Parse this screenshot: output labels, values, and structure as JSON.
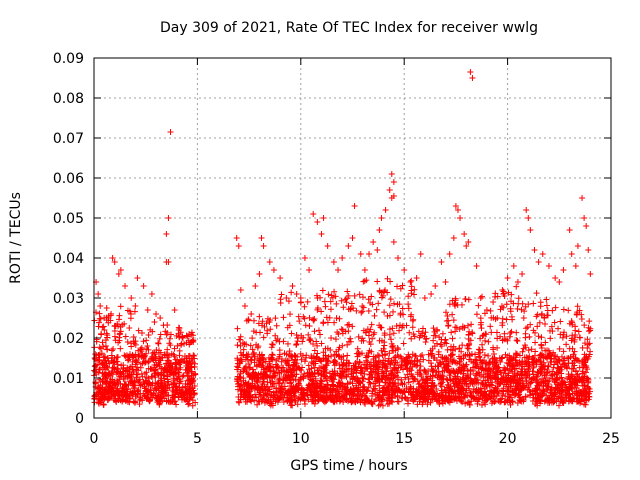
{
  "chart_data": {
    "type": "scatter",
    "title": "Day 309 of 2021, Rate Of TEC Index for receiver wwlg",
    "xlabel": "GPS time / hours",
    "ylabel": "ROTI / TECUs",
    "xlim": [
      0,
      25
    ],
    "ylim": [
      0,
      0.09
    ],
    "x_ticks": [
      "0",
      "5",
      "10",
      "15",
      "20",
      "25"
    ],
    "y_ticks": [
      "0",
      "0.01",
      "0.02",
      "0.03",
      "0.04",
      "0.05",
      "0.06",
      "0.07",
      "0.08",
      "0.09"
    ],
    "grid": true,
    "marker": "+",
    "color": "#ff0000",
    "gap_hours": [
      4.9,
      6.9
    ],
    "series": [
      {
        "points": [
          [
            0.1,
            0.034
          ],
          [
            0.2,
            0.031
          ],
          [
            0.3,
            0.028
          ],
          [
            0.5,
            0.022
          ],
          [
            0.7,
            0.025
          ],
          [
            0.9,
            0.04
          ],
          [
            1.0,
            0.039
          ],
          [
            1.2,
            0.036
          ],
          [
            1.3,
            0.037
          ],
          [
            1.5,
            0.033
          ],
          [
            1.8,
            0.03
          ],
          [
            2.0,
            0.028
          ],
          [
            2.1,
            0.035
          ],
          [
            2.4,
            0.033
          ],
          [
            2.6,
            0.027
          ],
          [
            2.8,
            0.031
          ],
          [
            3.0,
            0.026
          ],
          [
            3.2,
            0.025
          ],
          [
            3.5,
            0.039
          ],
          [
            3.6,
            0.039
          ],
          [
            3.5,
            0.046
          ],
          [
            3.6,
            0.05
          ],
          [
            3.7,
            0.0715
          ],
          [
            3.9,
            0.027
          ],
          [
            4.1,
            0.022
          ],
          [
            4.3,
            0.02
          ],
          [
            4.6,
            0.021
          ],
          [
            4.8,
            0.019
          ],
          [
            6.9,
            0.045
          ],
          [
            7.0,
            0.043
          ],
          [
            7.1,
            0.032
          ],
          [
            7.3,
            0.028
          ],
          [
            7.6,
            0.026
          ],
          [
            7.8,
            0.033
          ],
          [
            8.0,
            0.036
          ],
          [
            8.1,
            0.045
          ],
          [
            8.2,
            0.043
          ],
          [
            8.5,
            0.039
          ],
          [
            8.7,
            0.037
          ],
          [
            9.0,
            0.035
          ],
          [
            9.3,
            0.03
          ],
          [
            9.6,
            0.033
          ],
          [
            9.8,
            0.031
          ],
          [
            10.0,
            0.03
          ],
          [
            10.2,
            0.04
          ],
          [
            10.4,
            0.037
          ],
          [
            10.6,
            0.051
          ],
          [
            10.8,
            0.049
          ],
          [
            11.0,
            0.046
          ],
          [
            11.1,
            0.05
          ],
          [
            11.3,
            0.043
          ],
          [
            11.6,
            0.039
          ],
          [
            11.8,
            0.037
          ],
          [
            12.0,
            0.04
          ],
          [
            12.3,
            0.043
          ],
          [
            12.5,
            0.045
          ],
          [
            12.6,
            0.053
          ],
          [
            12.9,
            0.041
          ],
          [
            13.1,
            0.037
          ],
          [
            13.3,
            0.041
          ],
          [
            13.5,
            0.044
          ],
          [
            13.7,
            0.042
          ],
          [
            13.8,
            0.047
          ],
          [
            13.9,
            0.05
          ],
          [
            14.1,
            0.052
          ],
          [
            14.3,
            0.057
          ],
          [
            14.4,
            0.061
          ],
          [
            14.5,
            0.059
          ],
          [
            14.5,
            0.0555
          ],
          [
            14.4,
            0.055
          ],
          [
            14.5,
            0.044
          ],
          [
            14.7,
            0.04
          ],
          [
            15.0,
            0.037
          ],
          [
            15.3,
            0.034
          ],
          [
            15.6,
            0.035
          ],
          [
            15.8,
            0.041
          ],
          [
            16.0,
            0.03
          ],
          [
            16.3,
            0.031
          ],
          [
            16.5,
            0.033
          ],
          [
            16.8,
            0.039
          ],
          [
            17.0,
            0.034
          ],
          [
            17.2,
            0.041
          ],
          [
            17.4,
            0.045
          ],
          [
            17.5,
            0.053
          ],
          [
            17.6,
            0.052
          ],
          [
            17.7,
            0.05
          ],
          [
            17.9,
            0.046
          ],
          [
            18.0,
            0.043
          ],
          [
            18.1,
            0.044
          ],
          [
            18.2,
            0.0865
          ],
          [
            18.3,
            0.085
          ],
          [
            18.5,
            0.038
          ],
          [
            18.7,
            0.03
          ],
          [
            19.0,
            0.027
          ],
          [
            19.3,
            0.029
          ],
          [
            19.5,
            0.025
          ],
          [
            19.8,
            0.031
          ],
          [
            20.0,
            0.035
          ],
          [
            20.3,
            0.038
          ],
          [
            20.5,
            0.034
          ],
          [
            20.7,
            0.036
          ],
          [
            20.9,
            0.052
          ],
          [
            21.0,
            0.05
          ],
          [
            21.1,
            0.047
          ],
          [
            21.3,
            0.042
          ],
          [
            21.5,
            0.039
          ],
          [
            21.7,
            0.041
          ],
          [
            22.0,
            0.038
          ],
          [
            22.3,
            0.035
          ],
          [
            22.5,
            0.034
          ],
          [
            22.7,
            0.037
          ],
          [
            23.0,
            0.047
          ],
          [
            23.1,
            0.041
          ],
          [
            23.3,
            0.038
          ],
          [
            23.4,
            0.043
          ],
          [
            23.6,
            0.055
          ],
          [
            23.7,
            0.05
          ],
          [
            23.8,
            0.048
          ],
          [
            23.9,
            0.042
          ],
          [
            24.0,
            0.036
          ]
        ]
      }
    ]
  }
}
